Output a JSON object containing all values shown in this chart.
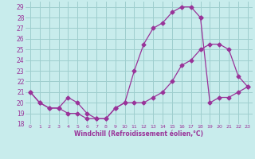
{
  "xlabel": "Windchill (Refroidissement éolien,°C)",
  "bg_color": "#c8ecec",
  "grid_color": "#9ecece",
  "line_color": "#993399",
  "xlim": [
    -0.5,
    23.5
  ],
  "ylim": [
    18,
    29.5
  ],
  "xticks": [
    0,
    1,
    2,
    3,
    4,
    5,
    6,
    7,
    8,
    9,
    10,
    11,
    12,
    13,
    14,
    15,
    16,
    17,
    18,
    19,
    20,
    21,
    22,
    23
  ],
  "yticks": [
    18,
    19,
    20,
    21,
    22,
    23,
    24,
    25,
    26,
    27,
    28,
    29
  ],
  "curve1_x": [
    0,
    1,
    2,
    3,
    4,
    5,
    6,
    7,
    8,
    9,
    10,
    11,
    12,
    13,
    14,
    15,
    16,
    17,
    18,
    19,
    20,
    21,
    22,
    23
  ],
  "curve1_y": [
    21.0,
    20.0,
    19.5,
    19.5,
    20.5,
    20.0,
    19.0,
    18.5,
    18.5,
    19.5,
    20.0,
    23.0,
    25.5,
    27.0,
    27.5,
    28.5,
    29.0,
    29.0,
    28.0,
    null,
    null,
    null,
    null,
    null
  ],
  "curve2_x": [
    0,
    1,
    2,
    3,
    4,
    5,
    6,
    7,
    8,
    9,
    10,
    11,
    12,
    13,
    14,
    15,
    16,
    17,
    18,
    19,
    20,
    21,
    22,
    23
  ],
  "curve2_y": [
    21.0,
    20.0,
    19.5,
    19.5,
    19.0,
    19.0,
    18.5,
    18.5,
    18.5,
    19.5,
    20.0,
    20.0,
    20.0,
    20.5,
    21.0,
    22.0,
    23.5,
    24.0,
    25.0,
    25.5,
    25.5,
    25.0,
    22.5,
    21.5
  ],
  "curve3_x": [
    18,
    19,
    20,
    21,
    22,
    23
  ],
  "curve3_y": [
    28.0,
    20.0,
    20.5,
    20.5,
    21.0,
    21.5
  ]
}
